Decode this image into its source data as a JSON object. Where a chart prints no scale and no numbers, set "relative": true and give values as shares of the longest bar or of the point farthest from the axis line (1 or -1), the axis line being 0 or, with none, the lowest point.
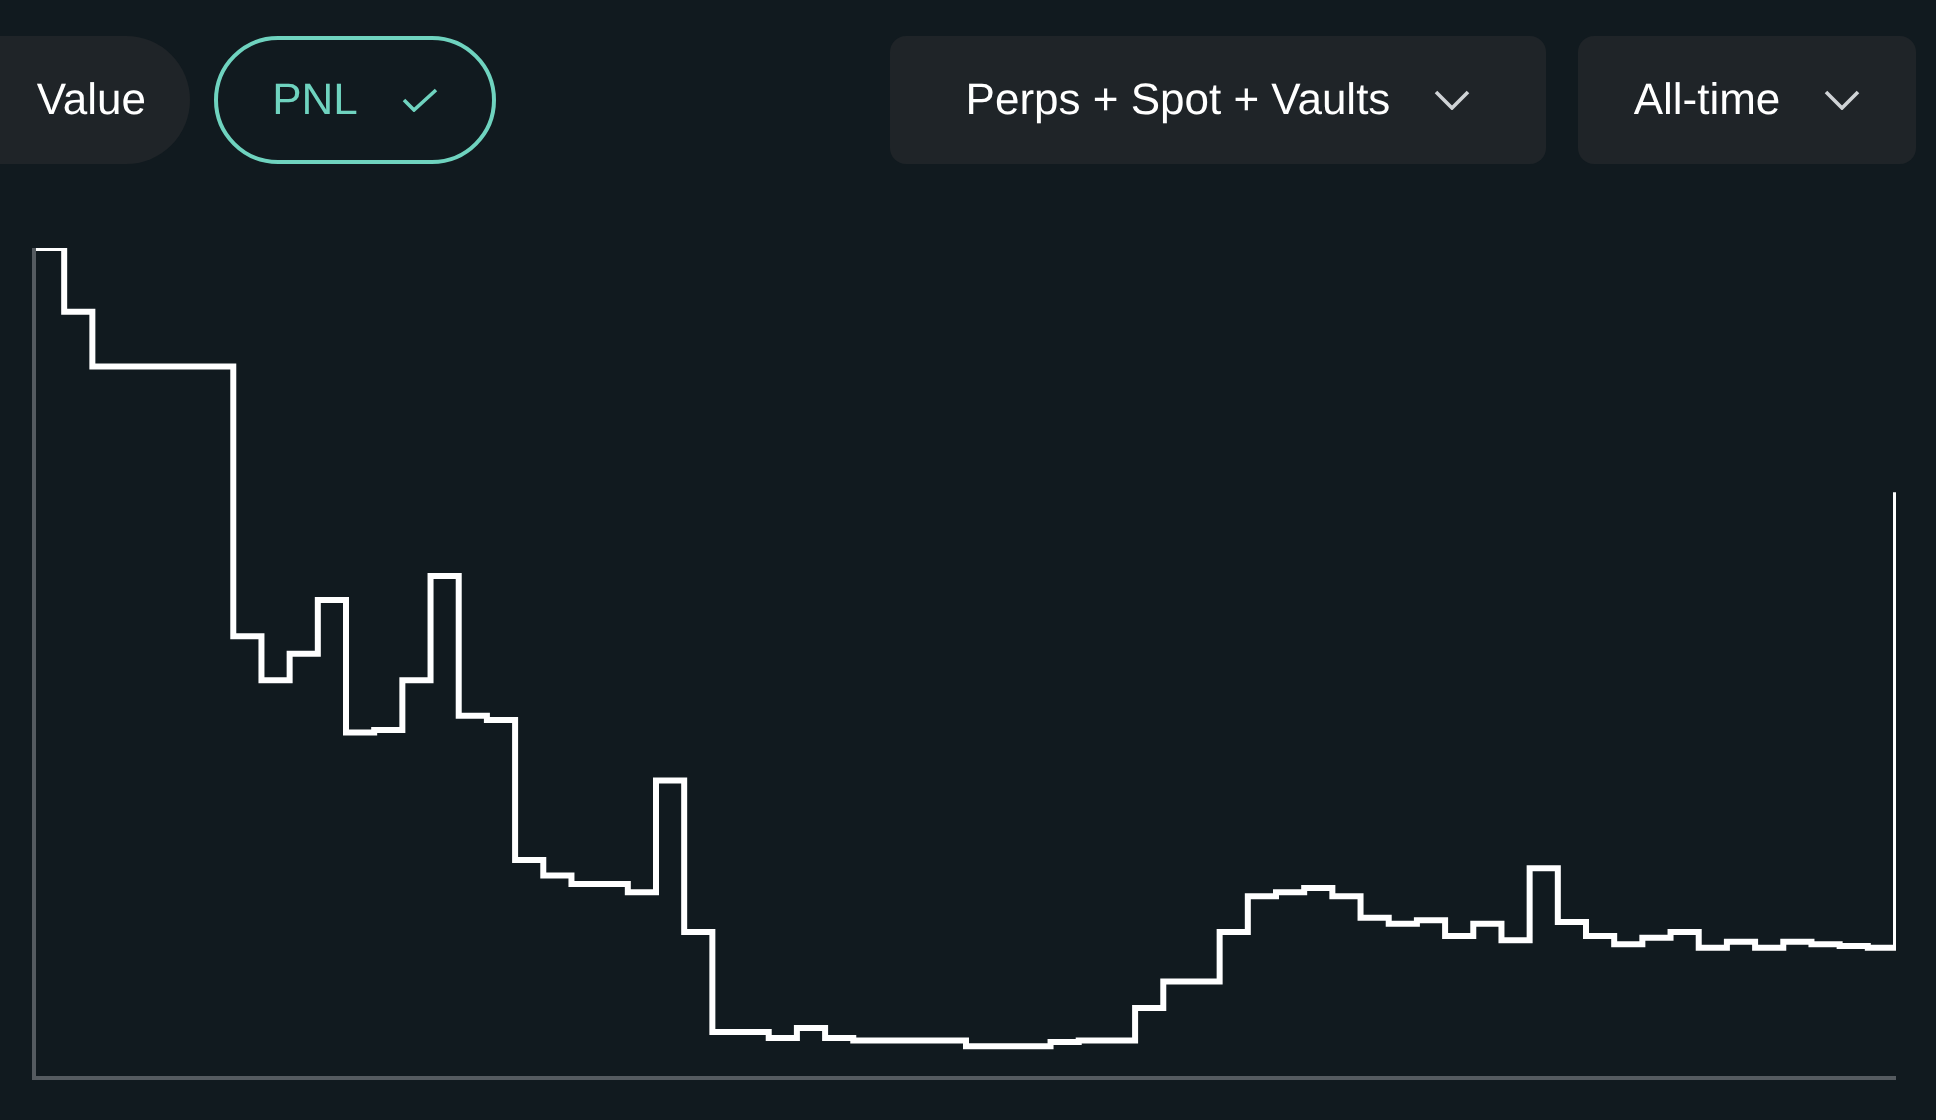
{
  "chart_data": {
    "type": "step",
    "relative": true,
    "color": "#ffffff",
    "marker": "none",
    "line_style": "solid",
    "annotations": [
      "Value",
      "PNL",
      "Perps + Spot + Vaults",
      "All-time"
    ],
    "categories": [
      null,
      null,
      null,
      null,
      null,
      null,
      null,
      null,
      null,
      null,
      null,
      null,
      null,
      null,
      null,
      null,
      null,
      null,
      null,
      null,
      null,
      null,
      null,
      null,
      null,
      null,
      null,
      null,
      null,
      null,
      null,
      null,
      null,
      null,
      null,
      null,
      null,
      null,
      null,
      null,
      null,
      null,
      null,
      null,
      null,
      null,
      null,
      null,
      null,
      null,
      null,
      null,
      null,
      null,
      null,
      null,
      null,
      null,
      null,
      null,
      null,
      null,
      null,
      null,
      null,
      null,
      null
    ],
    "values": [
      1.0,
      0.923,
      0.857,
      0.857,
      0.857,
      0.857,
      0.857,
      0.531,
      0.478,
      0.51,
      0.575,
      0.415,
      0.418,
      0.478,
      0.604,
      0.435,
      0.43,
      0.261,
      0.242,
      0.232,
      0.232,
      0.222,
      0.357,
      0.174,
      0.053,
      0.053,
      0.046,
      0.058,
      0.046,
      0.043,
      0.043,
      0.043,
      0.043,
      0.036,
      0.036,
      0.036,
      0.041,
      0.043,
      0.043,
      0.082,
      0.114,
      0.114,
      0.174,
      0.217,
      0.222,
      0.227,
      0.217,
      0.191,
      0.184,
      0.188,
      0.169,
      0.184,
      0.164,
      0.251,
      0.186,
      0.169,
      0.159,
      0.167,
      0.174,
      0.155,
      0.162,
      0.155,
      0.162,
      0.159,
      0.157,
      0.155,
      0.705
    ]
  }
}
